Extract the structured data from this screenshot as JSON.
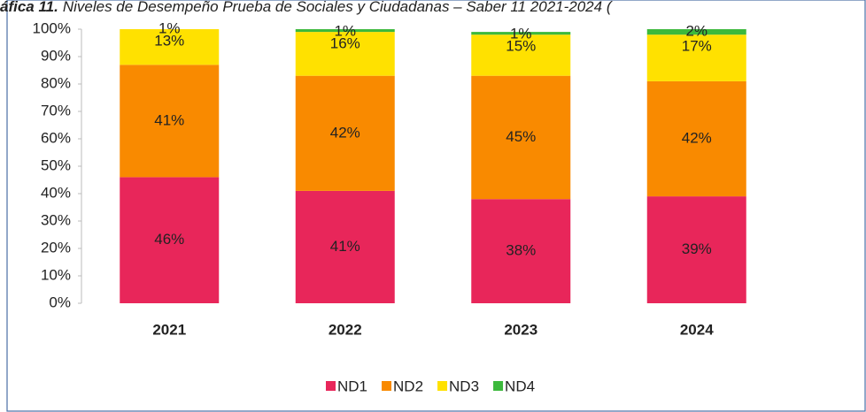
{
  "chart_data": {
    "type": "stacked_bar",
    "title_label": "áfica 11.",
    "title": "Niveles de Desempeño Prueba de Sociales y Ciudadanas – Saber 11 2021-2024 (",
    "categories": [
      "2021",
      "2022",
      "2023",
      "2024"
    ],
    "series": [
      {
        "name": "ND1",
        "color": "#e8265a",
        "values": [
          46,
          41,
          38,
          39
        ],
        "value_labels": [
          "46%",
          "41%",
          "38%",
          "39%"
        ]
      },
      {
        "name": "ND2",
        "color": "#f98a00",
        "values": [
          41,
          42,
          45,
          42
        ],
        "value_labels": [
          "41%",
          "42%",
          "45%",
          "42%"
        ]
      },
      {
        "name": "ND3",
        "color": "#ffe100",
        "values": [
          13,
          16,
          15,
          17
        ],
        "value_labels": [
          "13%",
          "16%",
          "15%",
          "17%"
        ]
      },
      {
        "name": "ND4",
        "color": "#3cb93c",
        "values": [
          1,
          1,
          1,
          2
        ],
        "value_labels": [
          "1%",
          "1%",
          "1%",
          "2%"
        ]
      }
    ],
    "ylim": [
      0,
      100
    ],
    "yticks": [
      {
        "value": 0,
        "label": "0%"
      },
      {
        "value": 10,
        "label": "10%"
      },
      {
        "value": 20,
        "label": "20%"
      },
      {
        "value": 30,
        "label": "30%"
      },
      {
        "value": 40,
        "label": "40%"
      },
      {
        "value": 50,
        "label": "50%"
      },
      {
        "value": 60,
        "label": "60%"
      },
      {
        "value": 70,
        "label": "70%"
      },
      {
        "value": 80,
        "label": "80%"
      },
      {
        "value": 90,
        "label": "90%"
      },
      {
        "value": 100,
        "label": "100%"
      }
    ],
    "grid": false,
    "legend": "bottom"
  }
}
